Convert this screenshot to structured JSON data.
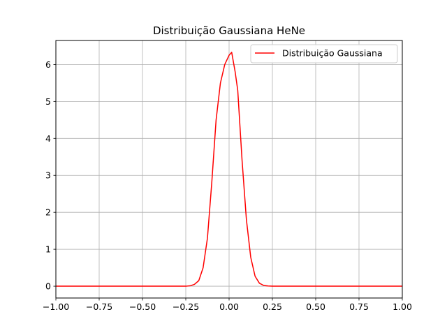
{
  "chart_data": {
    "type": "line",
    "title": "Distribuição Gaussiana HeNe",
    "xlabel": "",
    "ylabel": "",
    "xlim": [
      -1.0,
      1.0
    ],
    "ylim": [
      -0.32,
      6.65
    ],
    "grid": true,
    "legend_position": "top-right",
    "x_ticks": [
      -1.0,
      -0.75,
      -0.5,
      -0.25,
      0.0,
      0.25,
      0.5,
      0.75,
      1.0
    ],
    "x_tick_labels": [
      "−1.00",
      "−0.75",
      "−0.50",
      "−0.25",
      "0.00",
      "0.25",
      "0.50",
      "0.75",
      "1.00"
    ],
    "y_ticks": [
      0,
      1,
      2,
      3,
      4,
      5,
      6
    ],
    "y_tick_labels": [
      "0",
      "1",
      "2",
      "3",
      "4",
      "5",
      "6"
    ],
    "series": [
      {
        "name": "Distribuição Gaussiana",
        "color": "#ff0000",
        "x": [
          -1.0,
          -0.3,
          -0.25,
          -0.225,
          -0.2,
          -0.175,
          -0.15,
          -0.125,
          -0.1,
          -0.075,
          -0.05,
          -0.025,
          -0.01,
          0.0,
          0.015,
          0.035,
          0.05,
          0.075,
          0.1,
          0.125,
          0.15,
          0.175,
          0.2,
          0.225,
          0.25,
          0.275,
          0.3,
          1.0
        ],
        "y": [
          0.0,
          0.0,
          0.0,
          0.01,
          0.05,
          0.15,
          0.5,
          1.3,
          2.8,
          4.5,
          5.5,
          6.0,
          6.15,
          6.25,
          6.33,
          5.8,
          5.3,
          3.4,
          1.8,
          0.78,
          0.27,
          0.08,
          0.02,
          0.005,
          0.0,
          0.0,
          0.0,
          0.0
        ]
      }
    ]
  }
}
